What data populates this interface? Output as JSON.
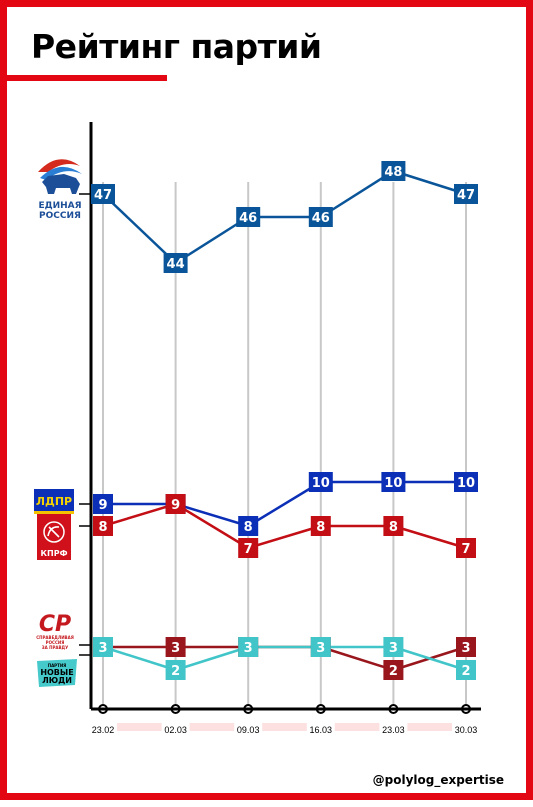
{
  "page": {
    "title": "Рейтинг партий",
    "handle": "@polylog_expertise",
    "accent_color": "#e30613"
  },
  "logos": {
    "er": {
      "line1": "ЕДИНАЯ",
      "line2": "РОССИЯ",
      "icon": "bear-icon"
    },
    "ldpr": {
      "text": "ЛДПР"
    },
    "kprf": {
      "text": "КПРФ",
      "icon": "hammer-sickle-icon"
    },
    "sr": {
      "text": "СР",
      "sub1": "СПРАВЕДЛИВАЯ",
      "sub2": "РОССИЯ",
      "sub3": "ЗА ПРАВДУ"
    },
    "nl": {
      "line1": "ПАРТИЯ",
      "line2": "НОВЫЕ",
      "line3": "ЛЮДИ"
    }
  },
  "chart_data": {
    "type": "line",
    "title": "Рейтинг партий",
    "x": [
      "23.02",
      "02.03",
      "09.03",
      "16.03",
      "23.03",
      "30.03"
    ],
    "series": [
      {
        "name": "ЕДИНАЯ РОССИЯ",
        "values": [
          47,
          44,
          46,
          46,
          48,
          47
        ],
        "color": "#0a5599"
      },
      {
        "name": "ЛДПР",
        "values": [
          9,
          9,
          8,
          10,
          10,
          10
        ],
        "color": "#0b2fb6"
      },
      {
        "name": "КПРФ",
        "values": [
          8,
          9,
          7,
          8,
          8,
          7
        ],
        "color": "#c20e14"
      },
      {
        "name": "СР",
        "values": [
          3,
          3,
          3,
          3,
          2,
          3
        ],
        "color": "#98161c"
      },
      {
        "name": "НОВЫЕ ЛЮДИ",
        "values": [
          3,
          2,
          3,
          3,
          3,
          2
        ],
        "color": "#41c5c8"
      }
    ],
    "grid": "vertical",
    "legend": "left logos"
  }
}
